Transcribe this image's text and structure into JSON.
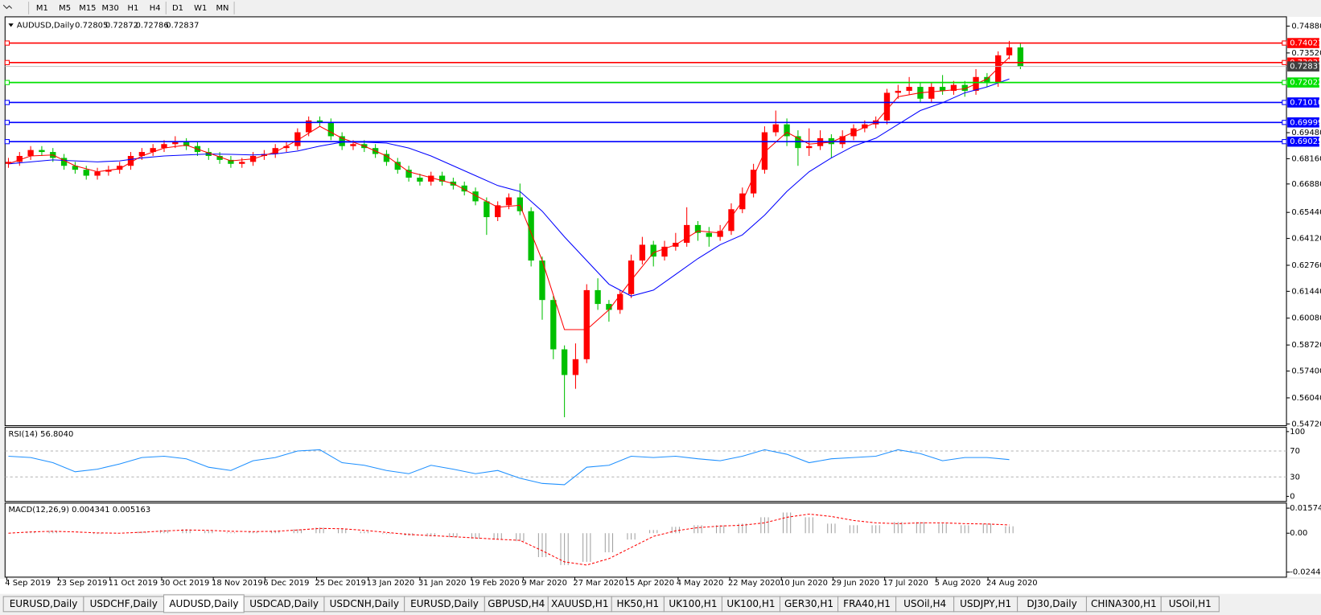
{
  "toolbar": {
    "timeframes": [
      "M1",
      "M5",
      "M15",
      "M30",
      "H1",
      "H4",
      "D1",
      "W1",
      "MN"
    ]
  },
  "chart": {
    "type": "candlestick",
    "symbol": "AUDUSD,Daily",
    "quote": [
      "0.72805",
      "0.72872",
      "0.72786",
      "0.72837"
    ],
    "ylim": [
      0.5463,
      0.7535
    ],
    "yticks": [
      {
        "value": 0.7488,
        "label": "0.74880"
      },
      {
        "value": 0.7352,
        "label": "0.73520"
      },
      {
        "value": 0.6948,
        "label": "0.69480"
      },
      {
        "value": 0.6816,
        "label": "0.68160"
      },
      {
        "value": 0.6688,
        "label": "0.66880"
      },
      {
        "value": 0.6544,
        "label": "0.65440"
      },
      {
        "value": 0.6412,
        "label": "0.64120"
      },
      {
        "value": 0.6276,
        "label": "0.62760"
      },
      {
        "value": 0.6144,
        "label": "0.61440"
      },
      {
        "value": 0.6008,
        "label": "0.60080"
      },
      {
        "value": 0.5872,
        "label": "0.58720"
      },
      {
        "value": 0.574,
        "label": "0.57400"
      },
      {
        "value": 0.5604,
        "label": "0.56040"
      },
      {
        "value": 0.5472,
        "label": "0.54720"
      }
    ],
    "levels": [
      {
        "value": 0.74021,
        "color": "#ff0000"
      },
      {
        "value": 0.73033,
        "color": "#ff0000"
      },
      {
        "value": 0.72022,
        "color": "#00e000"
      },
      {
        "value": 0.7101,
        "label": "0.71010",
        "color": "#0000ff"
      },
      {
        "value": 0.69999,
        "color": "#0000ff"
      },
      {
        "value": 0.69025,
        "color": "#0000ff"
      }
    ],
    "up_color": "#ff0000",
    "down_color": "#00c000",
    "candles": [
      [
        0.679,
        0.682,
        0.677,
        0.68
      ],
      [
        0.68,
        0.685,
        0.678,
        0.683
      ],
      [
        0.683,
        0.688,
        0.681,
        0.686
      ],
      [
        0.686,
        0.688,
        0.683,
        0.685
      ],
      [
        0.685,
        0.687,
        0.68,
        0.682
      ],
      [
        0.682,
        0.684,
        0.676,
        0.678
      ],
      [
        0.678,
        0.68,
        0.674,
        0.676
      ],
      [
        0.676,
        0.678,
        0.671,
        0.673
      ],
      [
        0.673,
        0.677,
        0.671,
        0.675
      ],
      [
        0.675,
        0.678,
        0.673,
        0.676
      ],
      [
        0.676,
        0.68,
        0.674,
        0.678
      ],
      [
        0.678,
        0.685,
        0.676,
        0.683
      ],
      [
        0.683,
        0.687,
        0.681,
        0.685
      ],
      [
        0.685,
        0.689,
        0.683,
        0.687
      ],
      [
        0.687,
        0.691,
        0.685,
        0.689
      ],
      [
        0.689,
        0.693,
        0.687,
        0.69
      ],
      [
        0.69,
        0.692,
        0.686,
        0.688
      ],
      [
        0.688,
        0.69,
        0.683,
        0.685
      ],
      [
        0.685,
        0.687,
        0.681,
        0.683
      ],
      [
        0.683,
        0.685,
        0.679,
        0.681
      ],
      [
        0.681,
        0.683,
        0.677,
        0.679
      ],
      [
        0.679,
        0.682,
        0.677,
        0.68
      ],
      [
        0.68,
        0.685,
        0.678,
        0.683
      ],
      [
        0.683,
        0.686,
        0.681,
        0.684
      ],
      [
        0.684,
        0.689,
        0.682,
        0.687
      ],
      [
        0.687,
        0.69,
        0.685,
        0.688
      ],
      [
        0.688,
        0.697,
        0.686,
        0.695
      ],
      [
        0.695,
        0.703,
        0.693,
        0.701
      ],
      [
        0.701,
        0.703,
        0.698,
        0.7
      ],
      [
        0.7,
        0.702,
        0.691,
        0.693
      ],
      [
        0.693,
        0.695,
        0.686,
        0.688
      ],
      [
        0.688,
        0.691,
        0.686,
        0.689
      ],
      [
        0.689,
        0.691,
        0.685,
        0.687
      ],
      [
        0.687,
        0.689,
        0.682,
        0.684
      ],
      [
        0.684,
        0.686,
        0.678,
        0.68
      ],
      [
        0.68,
        0.682,
        0.674,
        0.676
      ],
      [
        0.676,
        0.678,
        0.67,
        0.672
      ],
      [
        0.672,
        0.674,
        0.668,
        0.67
      ],
      [
        0.67,
        0.675,
        0.668,
        0.673
      ],
      [
        0.673,
        0.675,
        0.668,
        0.67
      ],
      [
        0.67,
        0.672,
        0.666,
        0.668
      ],
      [
        0.668,
        0.67,
        0.663,
        0.665
      ],
      [
        0.665,
        0.667,
        0.658,
        0.66
      ],
      [
        0.66,
        0.662,
        0.643,
        0.652
      ],
      [
        0.652,
        0.66,
        0.65,
        0.658
      ],
      [
        0.658,
        0.664,
        0.656,
        0.662
      ],
      [
        0.662,
        0.669,
        0.653,
        0.655
      ],
      [
        0.655,
        0.657,
        0.627,
        0.63
      ],
      [
        0.63,
        0.632,
        0.6,
        0.61
      ],
      [
        0.61,
        0.612,
        0.58,
        0.585
      ],
      [
        0.585,
        0.587,
        0.5506,
        0.572
      ],
      [
        0.572,
        0.588,
        0.565,
        0.58
      ],
      [
        0.58,
        0.618,
        0.578,
        0.615
      ],
      [
        0.615,
        0.621,
        0.605,
        0.608
      ],
      [
        0.608,
        0.61,
        0.599,
        0.605
      ],
      [
        0.605,
        0.615,
        0.603,
        0.613
      ],
      [
        0.613,
        0.633,
        0.611,
        0.63
      ],
      [
        0.63,
        0.642,
        0.628,
        0.638
      ],
      [
        0.638,
        0.64,
        0.627,
        0.632
      ],
      [
        0.632,
        0.64,
        0.63,
        0.637
      ],
      [
        0.637,
        0.644,
        0.635,
        0.639
      ],
      [
        0.639,
        0.657,
        0.637,
        0.648
      ],
      [
        0.648,
        0.65,
        0.64,
        0.644
      ],
      [
        0.644,
        0.647,
        0.637,
        0.642
      ],
      [
        0.642,
        0.648,
        0.64,
        0.645
      ],
      [
        0.645,
        0.659,
        0.643,
        0.656
      ],
      [
        0.656,
        0.667,
        0.654,
        0.664
      ],
      [
        0.664,
        0.679,
        0.662,
        0.676
      ],
      [
        0.676,
        0.698,
        0.674,
        0.695
      ],
      [
        0.695,
        0.706,
        0.693,
        0.699
      ],
      [
        0.699,
        0.702,
        0.688,
        0.693
      ],
      [
        0.693,
        0.696,
        0.678,
        0.687
      ],
      [
        0.687,
        0.697,
        0.683,
        0.688
      ],
      [
        0.688,
        0.696,
        0.686,
        0.692
      ],
      [
        0.692,
        0.694,
        0.682,
        0.689
      ],
      [
        0.689,
        0.696,
        0.687,
        0.693
      ],
      [
        0.693,
        0.699,
        0.691,
        0.697
      ],
      [
        0.697,
        0.701,
        0.695,
        0.699
      ],
      [
        0.699,
        0.703,
        0.697,
        0.701
      ],
      [
        0.701,
        0.717,
        0.699,
        0.715
      ],
      [
        0.715,
        0.719,
        0.712,
        0.716
      ],
      [
        0.716,
        0.723,
        0.714,
        0.718
      ],
      [
        0.718,
        0.72,
        0.71,
        0.712
      ],
      [
        0.712,
        0.72,
        0.71,
        0.718
      ],
      [
        0.718,
        0.724,
        0.714,
        0.716
      ],
      [
        0.716,
        0.721,
        0.714,
        0.719
      ],
      [
        0.719,
        0.721,
        0.713,
        0.716
      ],
      [
        0.716,
        0.727,
        0.714,
        0.723
      ],
      [
        0.723,
        0.725,
        0.718,
        0.72
      ],
      [
        0.72,
        0.736,
        0.718,
        0.734
      ],
      [
        0.734,
        0.7413,
        0.732,
        0.738
      ],
      [
        0.738,
        0.74,
        0.727,
        0.72837
      ]
    ],
    "moving_averages": [
      {
        "color": "#0000ff",
        "values": [
          0.679,
          0.68,
          0.681,
          0.6805,
          0.68,
          0.6805,
          0.682,
          0.683,
          0.6835,
          0.684,
          0.6838,
          0.6835,
          0.684,
          0.6855,
          0.688,
          0.69,
          0.69,
          0.6895,
          0.687,
          0.683,
          0.678,
          0.673,
          0.668,
          0.665,
          0.655,
          0.642,
          0.63,
          0.618,
          0.612,
          0.615,
          0.623,
          0.631,
          0.638,
          0.643,
          0.653,
          0.665,
          0.675,
          0.682,
          0.688,
          0.692,
          0.699,
          0.706,
          0.71,
          0.715,
          0.718,
          0.722
        ]
      },
      {
        "color": "#ff0000",
        "values": [
          0.679,
          0.683,
          0.6835,
          0.678,
          0.675,
          0.6765,
          0.683,
          0.687,
          0.6885,
          0.6845,
          0.6805,
          0.6815,
          0.685,
          0.691,
          0.698,
          0.692,
          0.688,
          0.683,
          0.675,
          0.672,
          0.669,
          0.663,
          0.657,
          0.658,
          0.63,
          0.595,
          0.595,
          0.605,
          0.62,
          0.634,
          0.638,
          0.645,
          0.644,
          0.66,
          0.685,
          0.695,
          0.689,
          0.69,
          0.695,
          0.7,
          0.713,
          0.715,
          0.716,
          0.717,
          0.722,
          0.733
        ]
      }
    ],
    "dates": [
      "4 Sep 2019",
      "23 Sep 2019",
      "11 Oct 2019",
      "30 Oct 2019",
      "18 Nov 2019",
      "6 Dec 2019",
      "25 Dec 2019",
      "13 Jan 2020",
      "31 Jan 2020",
      "19 Feb 2020",
      "9 Mar 2020",
      "27 Mar 2020",
      "15 Apr 2020",
      "4 May 2020",
      "22 May 2020",
      "10 Jun 2020",
      "29 Jun 2020",
      "17 Jul 2020",
      "5 Aug 2020",
      "24 Aug 2020"
    ]
  },
  "rsi": {
    "title": "RSI(14) 56.8040",
    "ylim": [
      0,
      100
    ],
    "yticks": [
      100,
      70,
      30,
      0
    ],
    "color": "#1e90ff",
    "values": [
      62,
      60,
      52,
      38,
      42,
      50,
      60,
      62,
      58,
      45,
      40,
      55,
      60,
      70,
      72,
      52,
      48,
      40,
      35,
      48,
      42,
      35,
      40,
      28,
      20,
      18,
      45,
      48,
      62,
      60,
      62,
      58,
      55,
      62,
      72,
      65,
      52,
      58,
      60,
      62,
      72,
      66,
      55,
      60,
      60,
      56.804
    ]
  },
  "macd": {
    "title": "MACD(12,26,9) 0.004341 0.005163",
    "ylim": [
      -0.0276,
      0.0189
    ],
    "yticks": [
      0.015741,
      {
        "value": 0,
        "label": "0.00"
      },
      -0.024412
    ],
    "histogram_color": "#a0a0a0",
    "signal_color": "#ff0000",
    "histogram": [
      0,
      0.001,
      0.0015,
      0,
      -0.0005,
      0,
      0.001,
      0.002,
      0.0025,
      0.0015,
      0.0005,
      0.001,
      0.0015,
      0.0025,
      0.0035,
      0.0025,
      0.001,
      -0.0005,
      -0.0015,
      -0.002,
      -0.0025,
      -0.0035,
      -0.004,
      -0.005,
      -0.015,
      -0.02,
      -0.018,
      -0.012,
      -0.004,
      0.002,
      0.004,
      0.005,
      0.005,
      0.006,
      0.01,
      0.013,
      0.01,
      0.006,
      0.005,
      0.005,
      0.007,
      0.007,
      0.006,
      0.005,
      0.006,
      0.004341
    ],
    "signal": [
      0,
      0.0008,
      0.0012,
      0.0008,
      0.0002,
      0,
      0.0006,
      0.0014,
      0.002,
      0.0018,
      0.0012,
      0.001,
      0.0012,
      0.002,
      0.003,
      0.0028,
      0.0018,
      0.0005,
      -0.0008,
      -0.0015,
      -0.0022,
      -0.003,
      -0.0038,
      -0.0045,
      -0.011,
      -0.018,
      -0.02,
      -0.016,
      -0.009,
      -0.002,
      0.0015,
      0.0035,
      0.0045,
      0.005,
      0.0065,
      0.01,
      0.012,
      0.0105,
      0.008,
      0.0065,
      0.006,
      0.0065,
      0.0065,
      0.006,
      0.0058,
      0.005163
    ]
  },
  "tabs": {
    "items": [
      "EURUSD,Daily",
      "USDCHF,Daily",
      "AUDUSD,Daily",
      "USDCAD,Daily",
      "USDCNH,Daily",
      "EURUSD,Daily",
      "GBPUSD,H4",
      "XAUUSD,H1",
      "HK50,H1",
      "UK100,H1",
      "UK100,H1",
      "GER30,H1",
      "FRA40,H1",
      "USOil,H4",
      "USDJPY,H1",
      "DJ30,Daily",
      "CHINA300,H1",
      "USOil,H1"
    ],
    "active": 2
  }
}
